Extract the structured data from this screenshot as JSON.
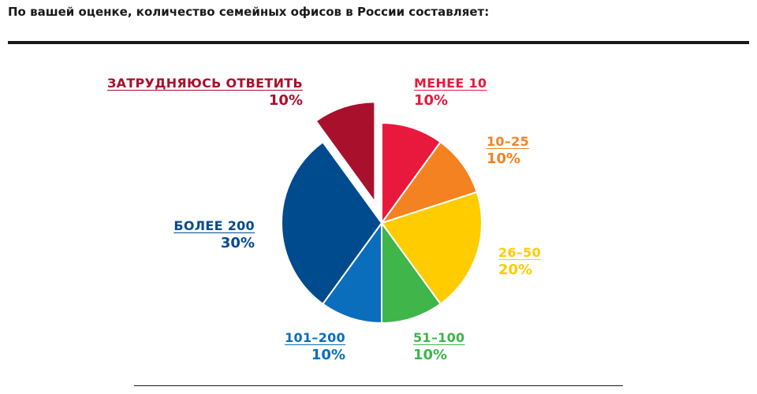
{
  "question": "По вашей оценке, количество семейных офисов в России составляет:",
  "chart_data": {
    "type": "pie",
    "title": "",
    "slices": [
      {
        "label": "МЕНЕЕ 10",
        "value": 10,
        "value_label": "10%",
        "color": "#e8193c"
      },
      {
        "label": "10–25",
        "value": 10,
        "value_label": "10%",
        "color": "#f58220"
      },
      {
        "label": "26–50",
        "value": 20,
        "value_label": "20%",
        "color": "#ffcc00"
      },
      {
        "label": "51–100",
        "value": 10,
        "value_label": "10%",
        "color": "#3fb54a"
      },
      {
        "label": "101–200",
        "value": 10,
        "value_label": "10%",
        "color": "#0a6ebd"
      },
      {
        "label": "БОЛЕЕ 200",
        "value": 30,
        "value_label": "30%",
        "color": "#004b8d"
      },
      {
        "label": "ЗАТРУДНЯЮСЬ ОТВЕТИТЬ",
        "value": 10,
        "value_label": "10%",
        "color": "#a8102c",
        "exploded": true
      }
    ]
  }
}
